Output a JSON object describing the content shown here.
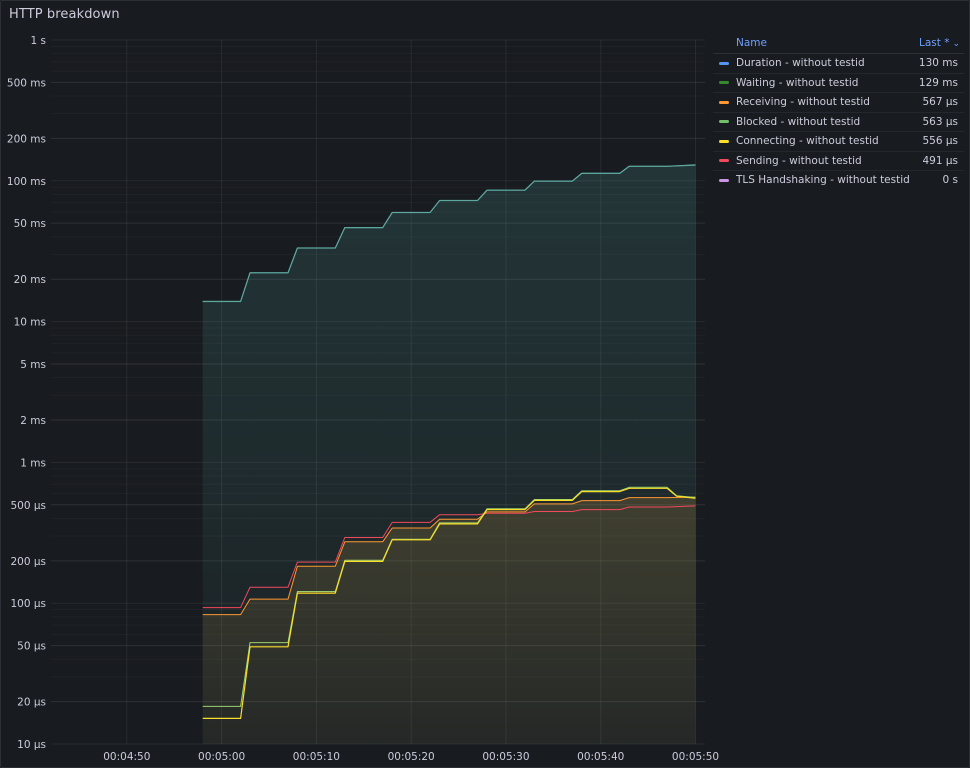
{
  "panel": {
    "title": "HTTP breakdown"
  },
  "legend": {
    "col_name": "Name",
    "col_value": "Last *",
    "sort_icon": "chevron-down-icon",
    "items": [
      {
        "name": "Duration - without testid",
        "value": "130 ms",
        "color": "#5794f2"
      },
      {
        "name": "Waiting - without testid",
        "value": "129 ms",
        "color": "#37872d"
      },
      {
        "name": "Receiving - without testid",
        "value": "567 µs",
        "color": "#ff9830"
      },
      {
        "name": "Blocked - without testid",
        "value": "563 µs",
        "color": "#73bf69"
      },
      {
        "name": "Connecting - without testid",
        "value": "556 µs",
        "color": "#fade2a"
      },
      {
        "name": "Sending - without testid",
        "value": "491 µs",
        "color": "#f2495c"
      },
      {
        "name": "TLS Handshaking - without testid",
        "value": "0 s",
        "color": "#ca95e5"
      }
    ]
  },
  "chart_data": {
    "type": "line",
    "title": "HTTP breakdown",
    "yscale": "log",
    "ylim_seconds": [
      1e-05,
      1
    ],
    "yticks": [
      {
        "v": 1,
        "label": "1 s"
      },
      {
        "v": 0.5,
        "label": "500 ms"
      },
      {
        "v": 0.2,
        "label": "200 ms"
      },
      {
        "v": 0.1,
        "label": "100 ms"
      },
      {
        "v": 0.05,
        "label": "50 ms"
      },
      {
        "v": 0.02,
        "label": "20 ms"
      },
      {
        "v": 0.01,
        "label": "10 ms"
      },
      {
        "v": 0.005,
        "label": "5 ms"
      },
      {
        "v": 0.002,
        "label": "2 ms"
      },
      {
        "v": 0.001,
        "label": "1 ms"
      },
      {
        "v": 0.0005,
        "label": "500 µs"
      },
      {
        "v": 0.0002,
        "label": "200 µs"
      },
      {
        "v": 0.0001,
        "label": "100 µs"
      },
      {
        "v": 5e-05,
        "label": "50 µs"
      },
      {
        "v": 2e-05,
        "label": "20 µs"
      },
      {
        "v": 1e-05,
        "label": "10 µs"
      }
    ],
    "xlim": [
      "00:04:42",
      "00:05:51"
    ],
    "xticks": [
      "00:04:50",
      "00:05:00",
      "00:05:10",
      "00:05:20",
      "00:05:30",
      "00:05:40",
      "00:05:50"
    ],
    "grid": true,
    "legend_position": "right",
    "series": [
      {
        "name": "Waiting - without testid",
        "color": "#37872d",
        "points": [
          [
            "00:04:58",
            0.0139
          ],
          [
            "00:05:02",
            0.0139
          ],
          [
            "00:05:03",
            0.0222
          ],
          [
            "00:05:07",
            0.0222
          ],
          [
            "00:05:08",
            0.0333
          ],
          [
            "00:05:12",
            0.0333
          ],
          [
            "00:05:13",
            0.0465
          ],
          [
            "00:05:17",
            0.0465
          ],
          [
            "00:05:18",
            0.0595
          ],
          [
            "00:05:22",
            0.0595
          ],
          [
            "00:05:23",
            0.0724
          ],
          [
            "00:05:27",
            0.0724
          ],
          [
            "00:05:28",
            0.0858
          ],
          [
            "00:05:32",
            0.0858
          ],
          [
            "00:05:33",
            0.0995
          ],
          [
            "00:05:37",
            0.0995
          ],
          [
            "00:05:38",
            0.1129
          ],
          [
            "00:05:42",
            0.1129
          ],
          [
            "00:05:43",
            0.1268
          ],
          [
            "00:05:47",
            0.1268
          ],
          [
            "00:05:50",
            0.129
          ]
        ]
      },
      {
        "name": "Duration - without testid",
        "color": "#5794f2",
        "points": [
          [
            "00:04:58",
            0.01392
          ],
          [
            "00:05:02",
            0.01392
          ],
          [
            "00:05:03",
            0.02223
          ],
          [
            "00:05:07",
            0.02223
          ],
          [
            "00:05:08",
            0.03332
          ],
          [
            "00:05:12",
            0.03332
          ],
          [
            "00:05:13",
            0.04655
          ],
          [
            "00:05:17",
            0.04655
          ],
          [
            "00:05:18",
            0.05957
          ],
          [
            "00:05:22",
            0.05957
          ],
          [
            "00:05:23",
            0.07248
          ],
          [
            "00:05:27",
            0.07248
          ],
          [
            "00:05:28",
            0.08587
          ],
          [
            "00:05:32",
            0.08587
          ],
          [
            "00:05:33",
            0.09958
          ],
          [
            "00:05:37",
            0.09958
          ],
          [
            "00:05:38",
            0.11302
          ],
          [
            "00:05:42",
            0.11302
          ],
          [
            "00:05:43",
            0.12694
          ],
          [
            "00:05:47",
            0.12694
          ],
          [
            "00:05:50",
            0.13
          ]
        ]
      },
      {
        "name": "Sending - without testid",
        "color": "#f2495c",
        "points": [
          [
            "00:04:58",
            9.3e-05
          ],
          [
            "00:05:02",
            9.3e-05
          ],
          [
            "00:05:03",
            0.00013
          ],
          [
            "00:05:07",
            0.00013
          ],
          [
            "00:05:08",
            0.000196
          ],
          [
            "00:05:12",
            0.000196
          ],
          [
            "00:05:13",
            0.000293
          ],
          [
            "00:05:17",
            0.000293
          ],
          [
            "00:05:18",
            0.000375
          ],
          [
            "00:05:22",
            0.000375
          ],
          [
            "00:05:23",
            0.000425
          ],
          [
            "00:05:27",
            0.000425
          ],
          [
            "00:05:28",
            0.000435
          ],
          [
            "00:05:32",
            0.000435
          ],
          [
            "00:05:33",
            0.000448
          ],
          [
            "00:05:37",
            0.000448
          ],
          [
            "00:05:38",
            0.000462
          ],
          [
            "00:05:42",
            0.000462
          ],
          [
            "00:05:43",
            0.000482
          ],
          [
            "00:05:47",
            0.000482
          ],
          [
            "00:05:50",
            0.000491
          ]
        ]
      },
      {
        "name": "Receiving - without testid",
        "color": "#ff9830",
        "points": [
          [
            "00:04:58",
            8.3e-05
          ],
          [
            "00:05:02",
            8.3e-05
          ],
          [
            "00:05:03",
            0.000107
          ],
          [
            "00:05:07",
            0.000107
          ],
          [
            "00:05:08",
            0.000183
          ],
          [
            "00:05:12",
            0.000183
          ],
          [
            "00:05:13",
            0.000273
          ],
          [
            "00:05:17",
            0.000273
          ],
          [
            "00:05:18",
            0.000342
          ],
          [
            "00:05:22",
            0.000342
          ],
          [
            "00:05:23",
            0.000395
          ],
          [
            "00:05:27",
            0.000395
          ],
          [
            "00:05:28",
            0.000445
          ],
          [
            "00:05:32",
            0.000445
          ],
          [
            "00:05:33",
            0.000507
          ],
          [
            "00:05:37",
            0.000507
          ],
          [
            "00:05:38",
            0.000535
          ],
          [
            "00:05:42",
            0.000535
          ],
          [
            "00:05:43",
            0.000562
          ],
          [
            "00:05:47",
            0.000562
          ],
          [
            "00:05:50",
            0.000567
          ]
        ]
      },
      {
        "name": "Blocked - without testid",
        "color": "#73bf69",
        "points": [
          [
            "00:04:58",
            1.85e-05
          ],
          [
            "00:05:02",
            1.85e-05
          ],
          [
            "00:05:03",
            5.25e-05
          ],
          [
            "00:05:07",
            5.25e-05
          ],
          [
            "00:05:08",
            0.000121
          ],
          [
            "00:05:12",
            0.000121
          ],
          [
            "00:05:13",
            0.000202
          ],
          [
            "00:05:17",
            0.000202
          ],
          [
            "00:05:18",
            0.000285
          ],
          [
            "00:05:22",
            0.000285
          ],
          [
            "00:05:23",
            0.000372
          ],
          [
            "00:05:27",
            0.000372
          ],
          [
            "00:05:28",
            0.000468
          ],
          [
            "00:05:32",
            0.000468
          ],
          [
            "00:05:33",
            0.000545
          ],
          [
            "00:05:37",
            0.000545
          ],
          [
            "00:05:38",
            0.00063
          ],
          [
            "00:05:42",
            0.00063
          ],
          [
            "00:05:43",
            0.000665
          ],
          [
            "00:05:47",
            0.000665
          ],
          [
            "00:05:48",
            0.00058
          ],
          [
            "00:05:50",
            0.000563
          ]
        ]
      },
      {
        "name": "Connecting - without testid",
        "color": "#fade2a",
        "points": [
          [
            "00:04:58",
            1.52e-05
          ],
          [
            "00:05:02",
            1.52e-05
          ],
          [
            "00:05:03",
            4.9e-05
          ],
          [
            "00:05:07",
            4.9e-05
          ],
          [
            "00:05:08",
            0.000118
          ],
          [
            "00:05:12",
            0.000118
          ],
          [
            "00:05:13",
            0.000198
          ],
          [
            "00:05:17",
            0.000198
          ],
          [
            "00:05:18",
            0.000282
          ],
          [
            "00:05:22",
            0.000282
          ],
          [
            "00:05:23",
            0.000366
          ],
          [
            "00:05:27",
            0.000366
          ],
          [
            "00:05:28",
            0.000462
          ],
          [
            "00:05:32",
            0.000462
          ],
          [
            "00:05:33",
            0.000537
          ],
          [
            "00:05:37",
            0.000537
          ],
          [
            "00:05:38",
            0.00062
          ],
          [
            "00:05:42",
            0.00062
          ],
          [
            "00:05:43",
            0.000655
          ],
          [
            "00:05:47",
            0.000655
          ],
          [
            "00:05:48",
            0.000575
          ],
          [
            "00:05:50",
            0.000556
          ]
        ]
      }
    ]
  }
}
